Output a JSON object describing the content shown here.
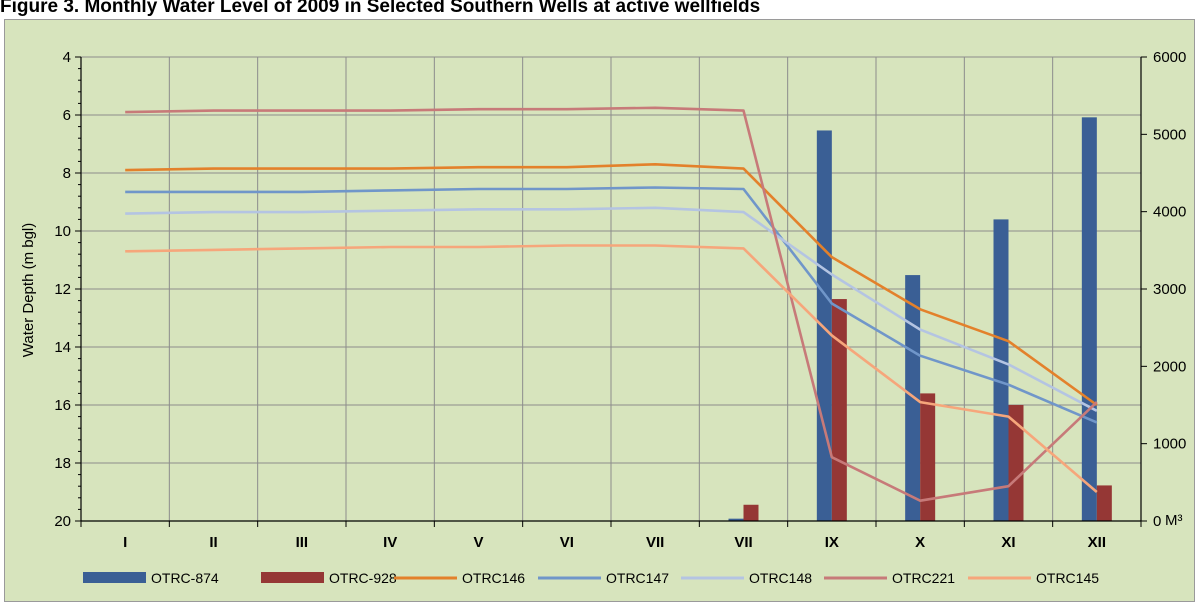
{
  "caption": "Figure 3.  Monthly Water Level of 2009 in Selected Southern Wells at active wellfields",
  "chart_data": {
    "type": "bar+line",
    "categories": [
      "I",
      "II",
      "III",
      "IV",
      "V",
      "VI",
      "VII",
      "VII",
      "IX",
      "X",
      "XI",
      "XII"
    ],
    "ylabel": "Water Depth (m bgl)",
    "ylim": [
      4,
      20
    ],
    "y_inverted": true,
    "y_ticks": [
      4,
      6,
      8,
      10,
      12,
      14,
      16,
      18,
      20
    ],
    "y2label": "M³",
    "y2lim": [
      0,
      6000
    ],
    "y2_ticks": [
      0,
      1000,
      2000,
      3000,
      4000,
      5000,
      6000
    ],
    "grid": true,
    "legend_position": "bottom",
    "bar_series": [
      {
        "name": "OTRC-874",
        "color": "#3a5f95",
        "values": [
          0,
          0,
          0,
          0,
          0,
          0,
          0,
          30,
          5050,
          3180,
          3900,
          5220
        ]
      },
      {
        "name": "OTRC-928",
        "color": "#953735",
        "values": [
          0,
          0,
          0,
          0,
          0,
          0,
          0,
          210,
          2870,
          1650,
          1500,
          460
        ]
      }
    ],
    "line_series": [
      {
        "name": "OTRC146",
        "color": "#e3812b",
        "values": [
          7.9,
          7.85,
          7.85,
          7.85,
          7.8,
          7.8,
          7.7,
          7.85,
          10.9,
          12.7,
          13.8,
          16.0
        ]
      },
      {
        "name": "OTRC147",
        "color": "#7096c9",
        "values": [
          8.65,
          8.65,
          8.65,
          8.6,
          8.55,
          8.55,
          8.5,
          8.55,
          12.5,
          14.3,
          15.3,
          16.6
        ]
      },
      {
        "name": "OTRC148",
        "color": "#b4c4e2",
        "values": [
          9.4,
          9.35,
          9.35,
          9.3,
          9.25,
          9.25,
          9.2,
          9.35,
          11.5,
          13.4,
          14.6,
          16.2
        ]
      },
      {
        "name": "OTRC221",
        "color": "#c77a79",
        "values": [
          5.9,
          5.85,
          5.85,
          5.85,
          5.8,
          5.8,
          5.75,
          5.85,
          17.8,
          19.3,
          18.8,
          15.9
        ]
      },
      {
        "name": "OTRC145",
        "color": "#f6a67b",
        "values": [
          10.7,
          10.65,
          10.6,
          10.55,
          10.55,
          10.5,
          10.5,
          10.6,
          13.6,
          15.9,
          16.4,
          19.0
        ]
      }
    ]
  }
}
